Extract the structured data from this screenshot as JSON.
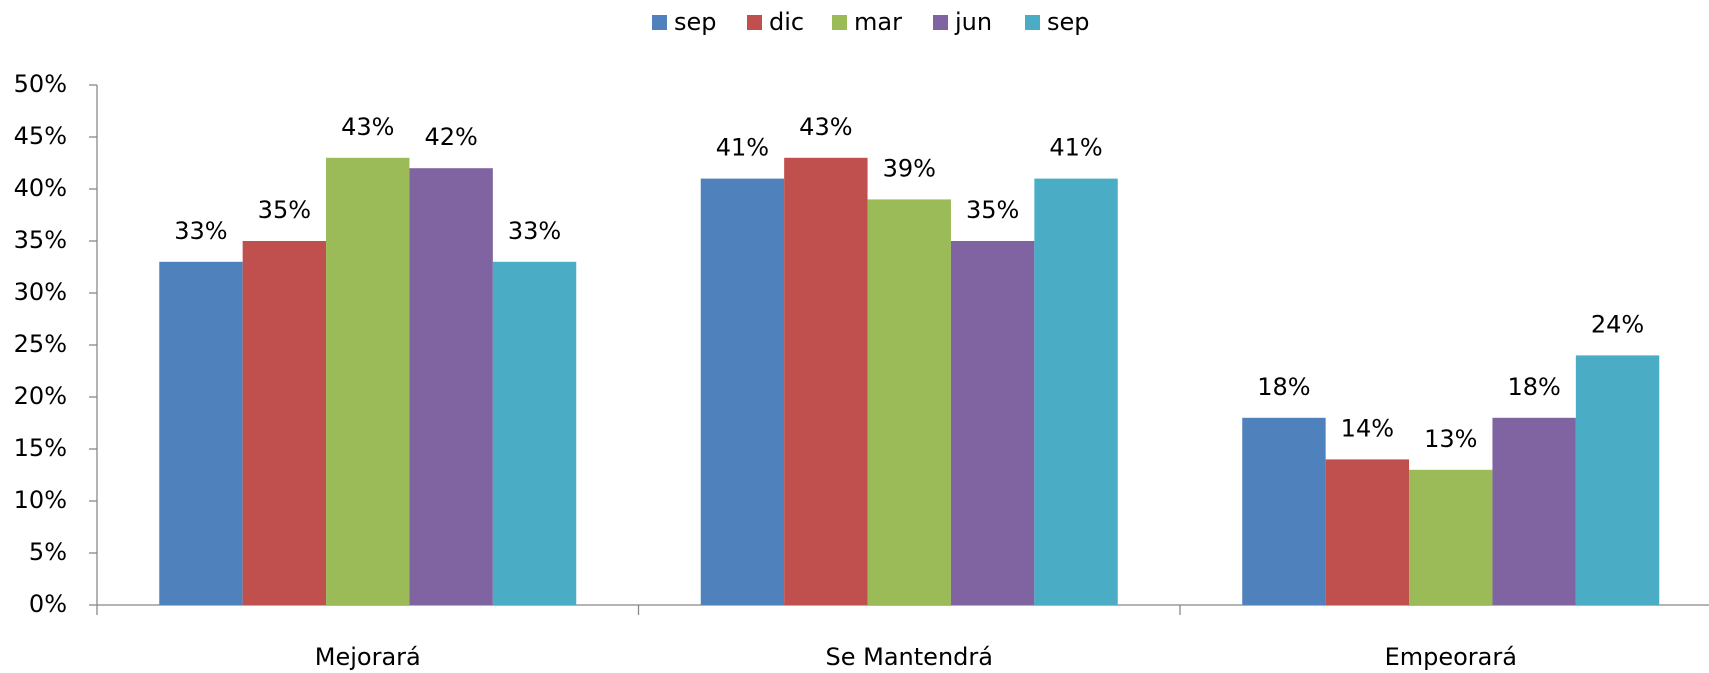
{
  "chart_data": {
    "type": "bar",
    "categories": [
      "Mejorará",
      "Se Mantendrá",
      "Empeorará"
    ],
    "series": [
      {
        "name": "sep",
        "color": "#4f81bd",
        "values": [
          33,
          41,
          18
        ],
        "value_labels": [
          "33%",
          "41%",
          "18%"
        ]
      },
      {
        "name": "dic",
        "color": "#c0504d",
        "values": [
          35,
          43,
          14
        ],
        "value_labels": [
          "35%",
          "43%",
          "14%"
        ]
      },
      {
        "name": "mar",
        "color": "#9bbb59",
        "values": [
          43,
          39,
          13
        ],
        "value_labels": [
          "43%",
          "39%",
          "13%"
        ]
      },
      {
        "name": "jun",
        "color": "#8064a2",
        "values": [
          42,
          35,
          18
        ],
        "value_labels": [
          "42%",
          "35%",
          "18%"
        ]
      },
      {
        "name": "sep",
        "color": "#4bacc6",
        "values": [
          33,
          41,
          24
        ],
        "value_labels": [
          "33%",
          "41%",
          "24%"
        ]
      }
    ],
    "ylim": [
      0,
      50
    ],
    "yticks": [
      {
        "value": 0,
        "label": "0%"
      },
      {
        "value": 5,
        "label": "5%"
      },
      {
        "value": 10,
        "label": "10%"
      },
      {
        "value": 15,
        "label": "15%"
      },
      {
        "value": 20,
        "label": "20%"
      },
      {
        "value": 25,
        "label": "25%"
      },
      {
        "value": 30,
        "label": "30%"
      },
      {
        "value": 35,
        "label": "35%"
      },
      {
        "value": 40,
        "label": "40%"
      },
      {
        "value": 45,
        "label": "45%"
      },
      {
        "value": 50,
        "label": "50%"
      }
    ],
    "grid": false,
    "legend": "top"
  }
}
